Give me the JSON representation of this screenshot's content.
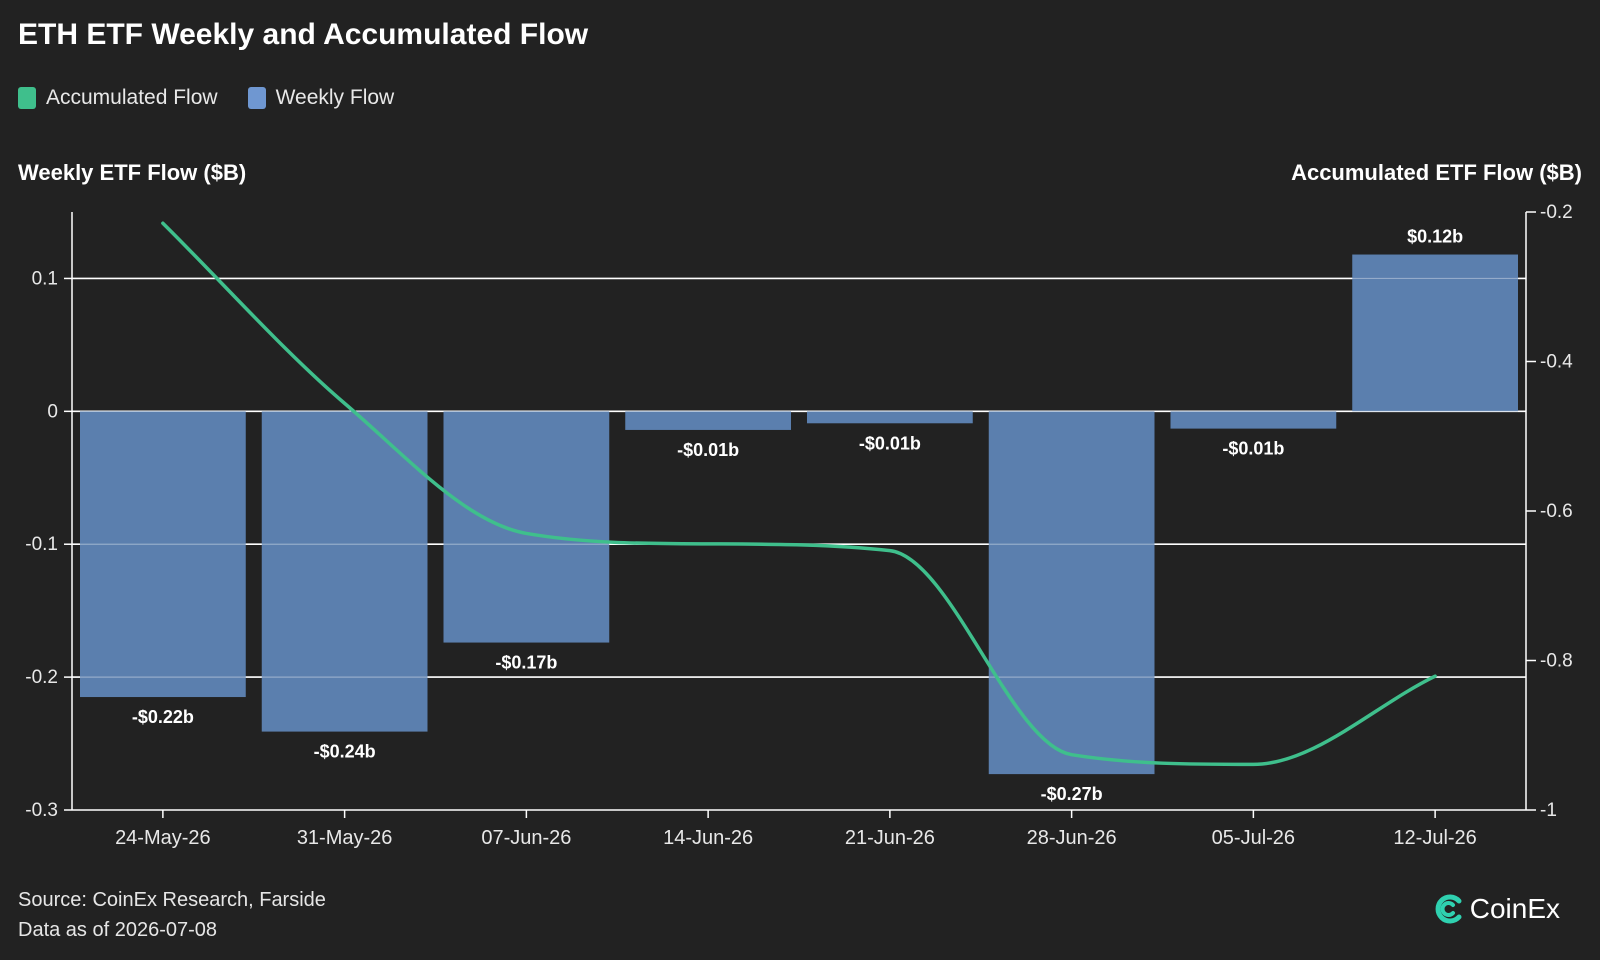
{
  "title": "ETH ETF Weekly and Accumulated Flow",
  "legend": [
    {
      "label": "Accumulated Flow",
      "color": "#3fbf8c"
    },
    {
      "label": "Weekly Flow",
      "color": "#6f97d1"
    }
  ],
  "left_axis_title": "Weekly ETF Flow ($B)",
  "right_axis_title": "Accumulated ETF Flow ($B)",
  "footer": {
    "source": "Source: CoinEx Research, Farside",
    "as_of": "Data as of 2026-07-08"
  },
  "brand": {
    "name": "CoinEx",
    "icon": "coinex-logo-icon"
  },
  "colors": {
    "background": "#222222",
    "bar": "#5b7fae",
    "line": "#3fbf8c",
    "grid": "#ffffff"
  },
  "chart_data": {
    "type": "bar",
    "categories": [
      "24-May-26",
      "31-May-26",
      "07-Jun-26",
      "14-Jun-26",
      "21-Jun-26",
      "28-Jun-26",
      "05-Jul-26",
      "12-Jul-26"
    ],
    "series": [
      {
        "name": "Weekly Flow",
        "type": "bar",
        "axis": "left",
        "values": [
          -0.215,
          -0.241,
          -0.174,
          -0.014,
          -0.009,
          -0.273,
          -0.013,
          0.118
        ],
        "labels": [
          "-$0.22b",
          "-$0.24b",
          "-$0.17b",
          "-$0.01b",
          "-$0.01b",
          "-$0.27b",
          "-$0.01b",
          "$0.12b"
        ]
      },
      {
        "name": "Accumulated Flow",
        "type": "line",
        "axis": "right",
        "values": [
          -0.215,
          -0.456,
          -0.63,
          -0.644,
          -0.653,
          -0.926,
          -0.939,
          -0.821
        ]
      }
    ],
    "left_axis": {
      "range": [
        -0.3,
        0.15
      ],
      "ticks": [
        0.1,
        0,
        -0.1,
        -0.2,
        -0.3
      ],
      "tick_labels": [
        "0.1",
        "0",
        "-0.1",
        "-0.2",
        "-0.3"
      ]
    },
    "right_axis": {
      "range": [
        -1,
        -0.2
      ],
      "ticks": [
        -0.2,
        -0.4,
        -0.6,
        -0.8,
        -1
      ],
      "tick_labels": [
        "-0.2",
        "-0.4",
        "-0.6",
        "-0.8",
        "-1"
      ]
    },
    "grid": true,
    "legend_position": "top-left"
  }
}
